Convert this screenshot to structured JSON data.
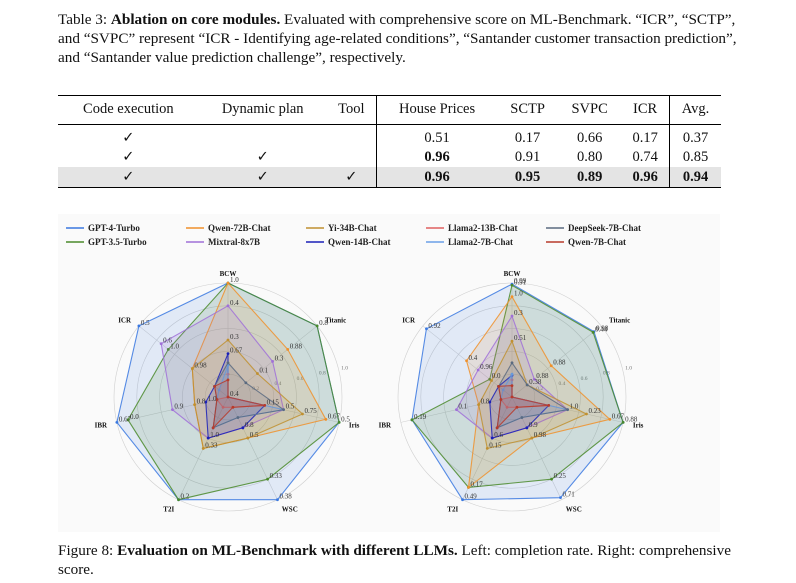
{
  "table_caption": {
    "label": "Table 3:",
    "bold": "Ablation on core modules.",
    "text": " Evaluated with comprehensive score on ML-Benchmark. “ICR”, “SCTP”, and “SVPC” represent “ICR - Identifying age-related conditions”, “Santander customer transaction prediction”, and “Santander value prediction challenge”, respectively."
  },
  "table": {
    "headers": [
      "Code execution",
      "Dynamic plan",
      "Tool",
      "House Prices",
      "SCTP",
      "SVPC",
      "ICR",
      "Avg."
    ],
    "rows": [
      {
        "cells": [
          "✓",
          "",
          "",
          "0.51",
          "0.17",
          "0.66",
          "0.17",
          "0.37"
        ],
        "bold": []
      },
      {
        "cells": [
          "✓",
          "✓",
          "",
          "0.96",
          "0.91",
          "0.80",
          "0.74",
          "0.85"
        ],
        "bold": [
          3
        ]
      },
      {
        "cells": [
          "✓",
          "✓",
          "✓",
          "0.96",
          "0.95",
          "0.89",
          "0.96",
          "0.94"
        ],
        "bold": [
          3,
          4,
          5,
          6,
          7
        ],
        "highlight": true
      }
    ]
  },
  "figure_caption": {
    "label": "Figure 8:",
    "bold": "Evaluation on ML-Benchmark with different LLMs.",
    "text": " Left: completion rate. Right: comprehensive score."
  },
  "chart_data": [
    {
      "type": "radar",
      "title": "Completion rate",
      "axes": [
        "BCW",
        "Titanic",
        "Iris",
        "WSC",
        "T2I",
        "IBR",
        "ICR"
      ],
      "ring_labels": [
        "0.2",
        "0.4",
        "0.6",
        "0.8",
        "1.0"
      ],
      "series": [
        {
          "name": "GPT-4-Turbo",
          "color": "#3a78e0",
          "values": [
            1.0,
            1.0,
            1.0,
            1.0,
            1.0,
            1.0,
            1.0
          ]
        },
        {
          "name": "GPT-3.5-Turbo",
          "color": "#4a8a2a",
          "values": [
            1.0,
            1.0,
            1.0,
            0.8,
            1.0,
            0.9,
            0.67
          ]
        },
        {
          "name": "Qwen-72B-Chat",
          "color": "#f0902a",
          "values": [
            1.0,
            0.67,
            0.88,
            0.4,
            0.5,
            0.3,
            0.4
          ]
        },
        {
          "name": "Mixtral-8x7B",
          "color": "#a070d8",
          "values": [
            0.8,
            0.5,
            0.5,
            0.3,
            0.4,
            0.5,
            0.75
          ]
        },
        {
          "name": "Yi-34B-Chat",
          "color": "#c09030",
          "values": [
            0.5,
            0.33,
            0.67,
            0.4,
            0.5,
            0.3,
            0.4
          ]
        },
        {
          "name": "Qwen-14B-Chat",
          "color": "#1a20b8",
          "values": [
            0.38,
            0.0,
            0.33,
            0.3,
            0.4,
            0.2,
            0.15
          ]
        },
        {
          "name": "Llama2-13B-Chat",
          "color": "#e06060",
          "values": [
            0.2,
            0.0,
            0.33,
            0.1,
            0.1,
            0.1,
            0.0
          ]
        },
        {
          "name": "Llama2-7B-Chat",
          "color": "#6aa0e8",
          "values": [
            0.28,
            0.0,
            0.5,
            0.2,
            0.3,
            0.1,
            0.1
          ]
        },
        {
          "name": "DeepSeek-7B-Chat",
          "color": "#5a6a80",
          "values": [
            0.3,
            0.2,
            0.5,
            0.2,
            0.3,
            0.1,
            0.15
          ]
        },
        {
          "name": "Qwen-7B-Chat",
          "color": "#b83a2a",
          "values": [
            0.15,
            0.0,
            0.33,
            0.1,
            0.3,
            0.1,
            0.15
          ]
        }
      ],
      "point_labels": [
        "1.0",
        "0.8",
        "0.5",
        "0.38",
        "0.2",
        "0.67",
        "0.5",
        "0.33",
        "0.0",
        "1.0",
        "0.88",
        "0.67",
        "0.5",
        "0.33",
        "0.8",
        "0.98",
        "0.4",
        "0.3",
        "0.5",
        "0.8",
        "1.0",
        "0.9",
        "0.6",
        "0.3",
        "0.1",
        "0.75",
        "0.67",
        "0.4",
        "0.15",
        "1.0"
      ]
    },
    {
      "type": "radar",
      "title": "Comprehensive score",
      "axes": [
        "BCW",
        "Titanic",
        "Iris",
        "WSC",
        "T2I",
        "IBR",
        "ICR"
      ],
      "ring_labels": [
        "0.2",
        "0.4",
        "0.6",
        "0.8",
        "1.0"
      ],
      "series": [
        {
          "name": "GPT-4-Turbo",
          "color": "#3a78e0",
          "values": [
            0.99,
            0.92,
            1.0,
            0.98,
            1.0,
            0.9,
            0.96
          ]
        },
        {
          "name": "GPT-3.5-Turbo",
          "color": "#4a8a2a",
          "values": [
            0.98,
            0.91,
            1.0,
            0.8,
            0.88,
            0.9,
            0.25
          ]
        },
        {
          "name": "Qwen-72B-Chat",
          "color": "#f0902a",
          "values": [
            0.88,
            0.44,
            0.88,
            0.4,
            0.88,
            0.3,
            0.51
          ]
        },
        {
          "name": "Mixtral-8x7B",
          "color": "#a070d8",
          "values": [
            0.71,
            0.25,
            0.5,
            0.3,
            0.4,
            0.5,
            0.38
          ]
        },
        {
          "name": "Yi-34B-Chat",
          "color": "#c09030",
          "values": [
            0.49,
            0.17,
            0.67,
            0.4,
            0.5,
            0.3,
            0.23
          ]
        },
        {
          "name": "Qwen-14B-Chat",
          "color": "#1a20b8",
          "values": [
            0.19,
            0.0,
            0.33,
            0.3,
            0.4,
            0.2,
            0.15
          ]
        },
        {
          "name": "Llama2-13B-Chat",
          "color": "#e06060",
          "values": [
            0.15,
            0.0,
            0.33,
            0.1,
            0.1,
            0.1,
            0.0
          ]
        },
        {
          "name": "Llama2-7B-Chat",
          "color": "#6aa0e8",
          "values": [
            0.2,
            0.0,
            0.5,
            0.2,
            0.3,
            0.1,
            0.1
          ]
        },
        {
          "name": "DeepSeek-7B-Chat",
          "color": "#5a6a80",
          "values": [
            0.3,
            0.17,
            0.5,
            0.2,
            0.3,
            0.1,
            0.15
          ]
        },
        {
          "name": "Qwen-7B-Chat",
          "color": "#b83a2a",
          "values": [
            0.1,
            0.0,
            0.33,
            0.1,
            0.3,
            0.1,
            0.15
          ]
        }
      ],
      "point_labels": [
        "0.99",
        "0.98",
        "0.88",
        "0.71",
        "0.49",
        "0.19",
        "0.92",
        "0.91",
        "0.44",
        "0.25",
        "0.17",
        "0.0",
        "1.0",
        "0.88",
        "0.67",
        "0.98",
        "0.8",
        "0.4",
        "0.3",
        "0.88",
        "1.0",
        "0.9",
        "0.6",
        "0.1",
        "0.96",
        "0.51",
        "0.38",
        "0.23",
        "0.15"
      ]
    }
  ]
}
